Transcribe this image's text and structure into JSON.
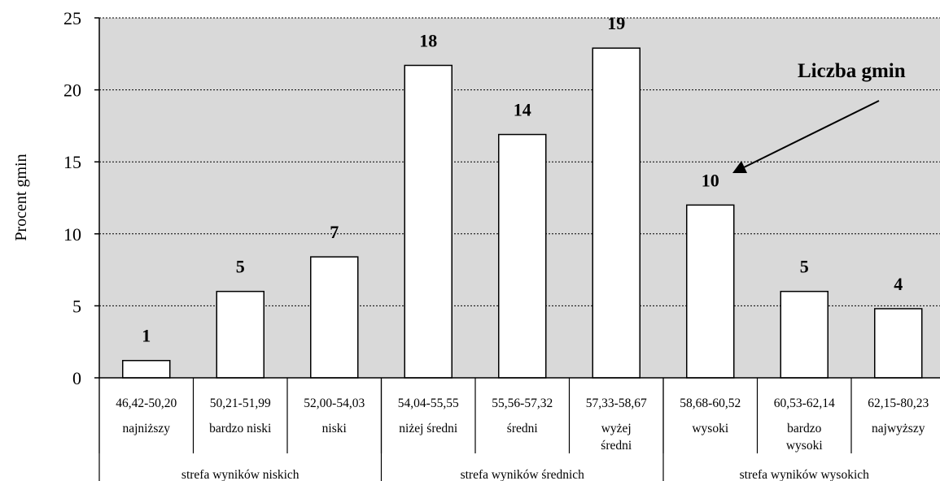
{
  "title_fragment": "…y … … … … … … … … … … … … … … … … … … (… … … , , , , , )",
  "chart_data": {
    "type": "bar",
    "ylabel": "Procent gmin",
    "ylim": [
      0,
      25
    ],
    "yticks": [
      "0",
      "5",
      "10",
      "15",
      "20",
      "25"
    ],
    "grid": true,
    "annotation": "Liczba gmin",
    "categories": [
      {
        "range": "46,42-50,20",
        "label": [
          "najniższy"
        ],
        "count": "1",
        "value": 1.2
      },
      {
        "range": "50,21-51,99",
        "label": [
          "bardzo niski"
        ],
        "count": "5",
        "value": 6.0
      },
      {
        "range": "52,00-54,03",
        "label": [
          "niski"
        ],
        "count": "7",
        "value": 8.4
      },
      {
        "range": "54,04-55,55",
        "label": [
          "niżej średni"
        ],
        "count": "18",
        "value": 21.7
      },
      {
        "range": "55,56-57,32",
        "label": [
          "średni"
        ],
        "count": "14",
        "value": 16.9
      },
      {
        "range": "57,33-58,67",
        "label": [
          "wyżej",
          "średni"
        ],
        "count": "19",
        "value": 22.9
      },
      {
        "range": "58,68-60,52",
        "label": [
          "wysoki"
        ],
        "count": "10",
        "value": 12.0
      },
      {
        "range": "60,53-62,14",
        "label": [
          "bardzo",
          "wysoki"
        ],
        "count": "5",
        "value": 6.0
      },
      {
        "range": "62,15-80,23",
        "label": [
          "najwyższy"
        ],
        "count": "4",
        "value": 4.8
      }
    ],
    "zones": [
      {
        "label": "strefa wyników niskich",
        "span": 3
      },
      {
        "label": "strefa wyników średnich",
        "span": 3
      },
      {
        "label": "strefa wyników wysokich",
        "span": 3
      }
    ],
    "colors": {
      "plot_bg": "#d9d9d9",
      "bar_fill": "#ffffff",
      "stroke": "#000000"
    }
  }
}
